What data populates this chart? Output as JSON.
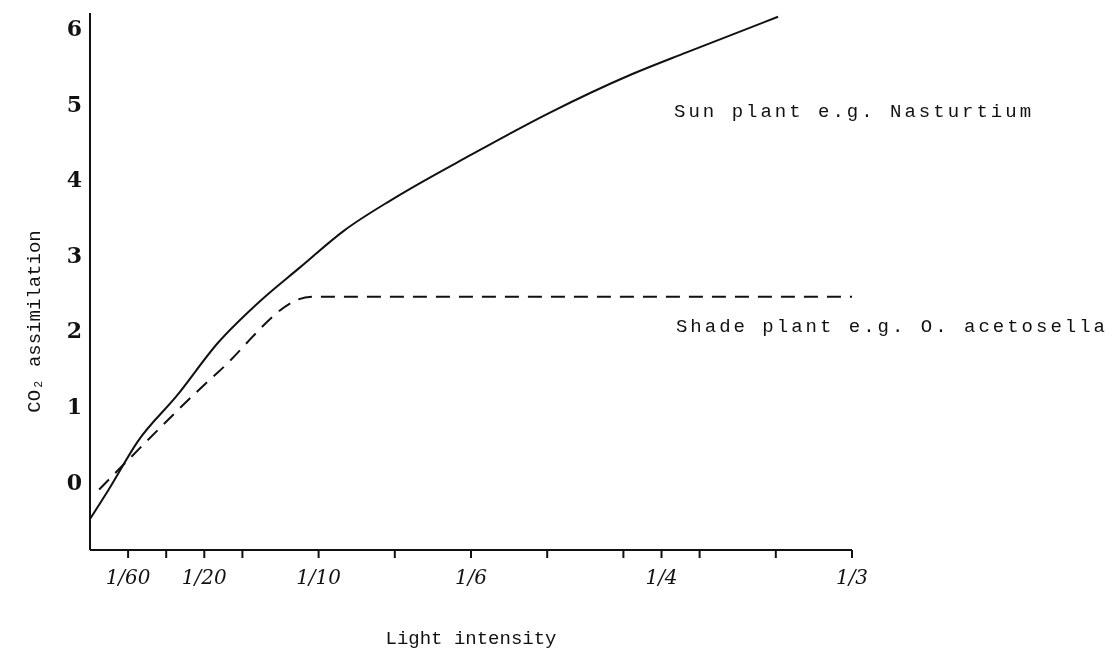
{
  "chart_data": {
    "type": "line",
    "xlabel": "Light intensity",
    "ylabel": "CO₂ assimilation",
    "xlim": [
      0,
      0.333333
    ],
    "xticks": [
      {
        "value": 0.016667,
        "label": "1/60"
      },
      {
        "value": 0.033333,
        "label": null
      },
      {
        "value": 0.05,
        "label": "1/20"
      },
      {
        "value": 0.066667,
        "label": null
      },
      {
        "value": 0.1,
        "label": "1/10"
      },
      {
        "value": 0.133333,
        "label": null
      },
      {
        "value": 0.166667,
        "label": "1/6"
      },
      {
        "value": 0.2,
        "label": null
      },
      {
        "value": 0.233333,
        "label": null
      },
      {
        "value": 0.25,
        "label": "1/4"
      },
      {
        "value": 0.266667,
        "label": null
      },
      {
        "value": 0.3,
        "label": null
      },
      {
        "value": 0.333333,
        "label": "1/3"
      }
    ],
    "ylim": [
      -0.9,
      6.2
    ],
    "yticks": [
      0,
      1,
      2,
      3,
      4,
      5,
      6
    ],
    "grid": false,
    "legend": false,
    "marker": "none",
    "series": [
      {
        "name": "Sun plant e.g. Nasturtium",
        "color": "#111111",
        "line_style": "solid",
        "x": [
          0,
          0.008,
          0.021,
          0.038,
          0.056,
          0.074,
          0.092,
          0.111,
          0.133,
          0.167,
          0.201,
          0.237,
          0.261,
          0.301
        ],
        "values": [
          -0.49,
          -0.11,
          0.54,
          1.14,
          1.84,
          2.38,
          2.84,
          3.32,
          3.75,
          4.33,
          4.88,
          5.39,
          5.68,
          6.15
        ]
      },
      {
        "name": "Shade plant e.g. O. acetosella",
        "color": "#111111",
        "line_style": "dashed",
        "x": [
          0.004,
          0.017,
          0.056,
          0.097,
          0.333333
        ],
        "values": [
          -0.1,
          0.3,
          1.45,
          2.45,
          2.45
        ]
      }
    ]
  }
}
